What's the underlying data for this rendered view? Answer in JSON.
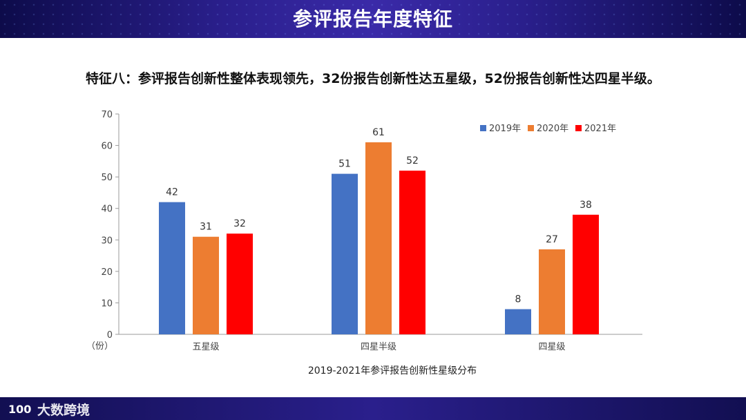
{
  "header": {
    "title": "参评报告年度特征"
  },
  "subtitle": "特征八：参评报告创新性整体表现领先，32份报告创新性达五星级，52份报告创新性达四星半级。",
  "footer": {
    "logo_mark": "100",
    "logo_text": "大数跨境"
  },
  "colors": {
    "s2019": "#4472C4",
    "s2020": "#ED7D31",
    "s2021": "#FF0000"
  },
  "chart_data": {
    "type": "bar",
    "title": "2019-2021年参评报告创新性星级分布",
    "ylabel": "（份）",
    "ylim": [
      0,
      70
    ],
    "yticks": [
      0,
      10,
      20,
      30,
      40,
      50,
      60,
      70
    ],
    "categories": [
      "五星级",
      "四星半级",
      "四星级"
    ],
    "series": [
      {
        "name": "2019年",
        "values": [
          42,
          51,
          8
        ],
        "color": "#4472C4"
      },
      {
        "name": "2020年",
        "values": [
          31,
          61,
          27
        ],
        "color": "#ED7D31"
      },
      {
        "name": "2021年",
        "values": [
          32,
          52,
          38
        ],
        "color": "#FF0000"
      }
    ],
    "legend_position": "top-right"
  }
}
